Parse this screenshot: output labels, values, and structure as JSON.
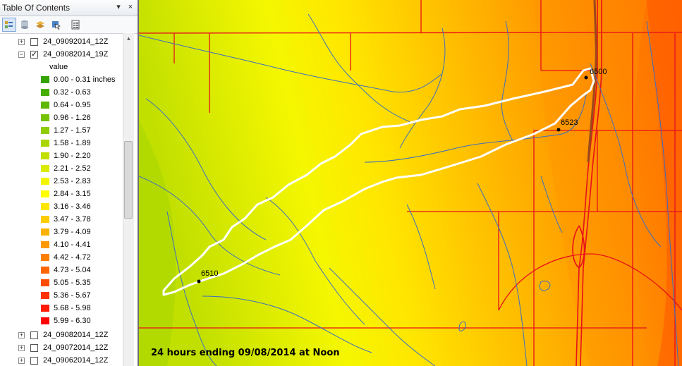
{
  "toc": {
    "title": "Table Of Contents",
    "title_buttons": {
      "pin": "▾",
      "close": "×"
    },
    "toolbar_icons": [
      "list-by-drawing-order-icon",
      "list-by-source-icon",
      "list-by-visibility-icon",
      "list-by-selection-icon",
      "options-icon"
    ],
    "layers_top": [
      {
        "name": "24_09092014_12Z",
        "expander": "+",
        "checked": false
      },
      {
        "name": "24_09082014_19Z",
        "expander": "−",
        "checked": true
      }
    ],
    "legend_title": "value",
    "legend": [
      {
        "label": "0.00 - 0.31 inches",
        "color": "#33a300"
      },
      {
        "label": "0.32 - 0.63",
        "color": "#47ad00"
      },
      {
        "label": "0.64 - 0.95",
        "color": "#5cb800"
      },
      {
        "label": "0.96 - 1.26",
        "color": "#75c200"
      },
      {
        "label": "1.27 - 1.57",
        "color": "#8fcc00"
      },
      {
        "label": "1.58 - 1.89",
        "color": "#a8d600"
      },
      {
        "label": "1.90 - 2.20",
        "color": "#c2e000"
      },
      {
        "label": "2.21 - 2.52",
        "color": "#dbeb00"
      },
      {
        "label": "2.53 - 2.83",
        "color": "#f2f500"
      },
      {
        "label": "2.84 - 3.15",
        "color": "#ffff00"
      },
      {
        "label": "3.16 - 3.46",
        "color": "#ffe600"
      },
      {
        "label": "3.47 - 3.78",
        "color": "#ffcc00"
      },
      {
        "label": "3.79 - 4.09",
        "color": "#ffb300"
      },
      {
        "label": "4.10 - 4.41",
        "color": "#ff9900"
      },
      {
        "label": "4.42 - 4.72",
        "color": "#ff8000"
      },
      {
        "label": "4.73 - 5.04",
        "color": "#ff6600"
      },
      {
        "label": "5.05 - 5.35",
        "color": "#ff4d00"
      },
      {
        "label": "5.36 - 5.67",
        "color": "#ff3300"
      },
      {
        "label": "5.68 - 5.98",
        "color": "#ff1a00"
      },
      {
        "label": "5.99 - 6.30",
        "color": "#ff0000"
      }
    ],
    "layers_bottom": [
      {
        "name": "24_09082014_12Z",
        "expander": "+",
        "checked": false
      },
      {
        "name": "24_09072014_12Z",
        "expander": "+",
        "checked": false
      },
      {
        "name": "24_09062014_12Z",
        "expander": "+",
        "checked": false
      }
    ]
  },
  "map": {
    "gauges": [
      {
        "id": "6500",
        "label": "6500"
      },
      {
        "id": "6523",
        "label": "6523"
      },
      {
        "id": "6510",
        "label": "6510"
      }
    ],
    "caption": "24 hours ending 09/08/2014 at Noon",
    "colors": {
      "roads": "#e8101a",
      "streams": "#3c6fbf",
      "boundary": "#ffffff",
      "highway": "#9a4a1a"
    }
  }
}
